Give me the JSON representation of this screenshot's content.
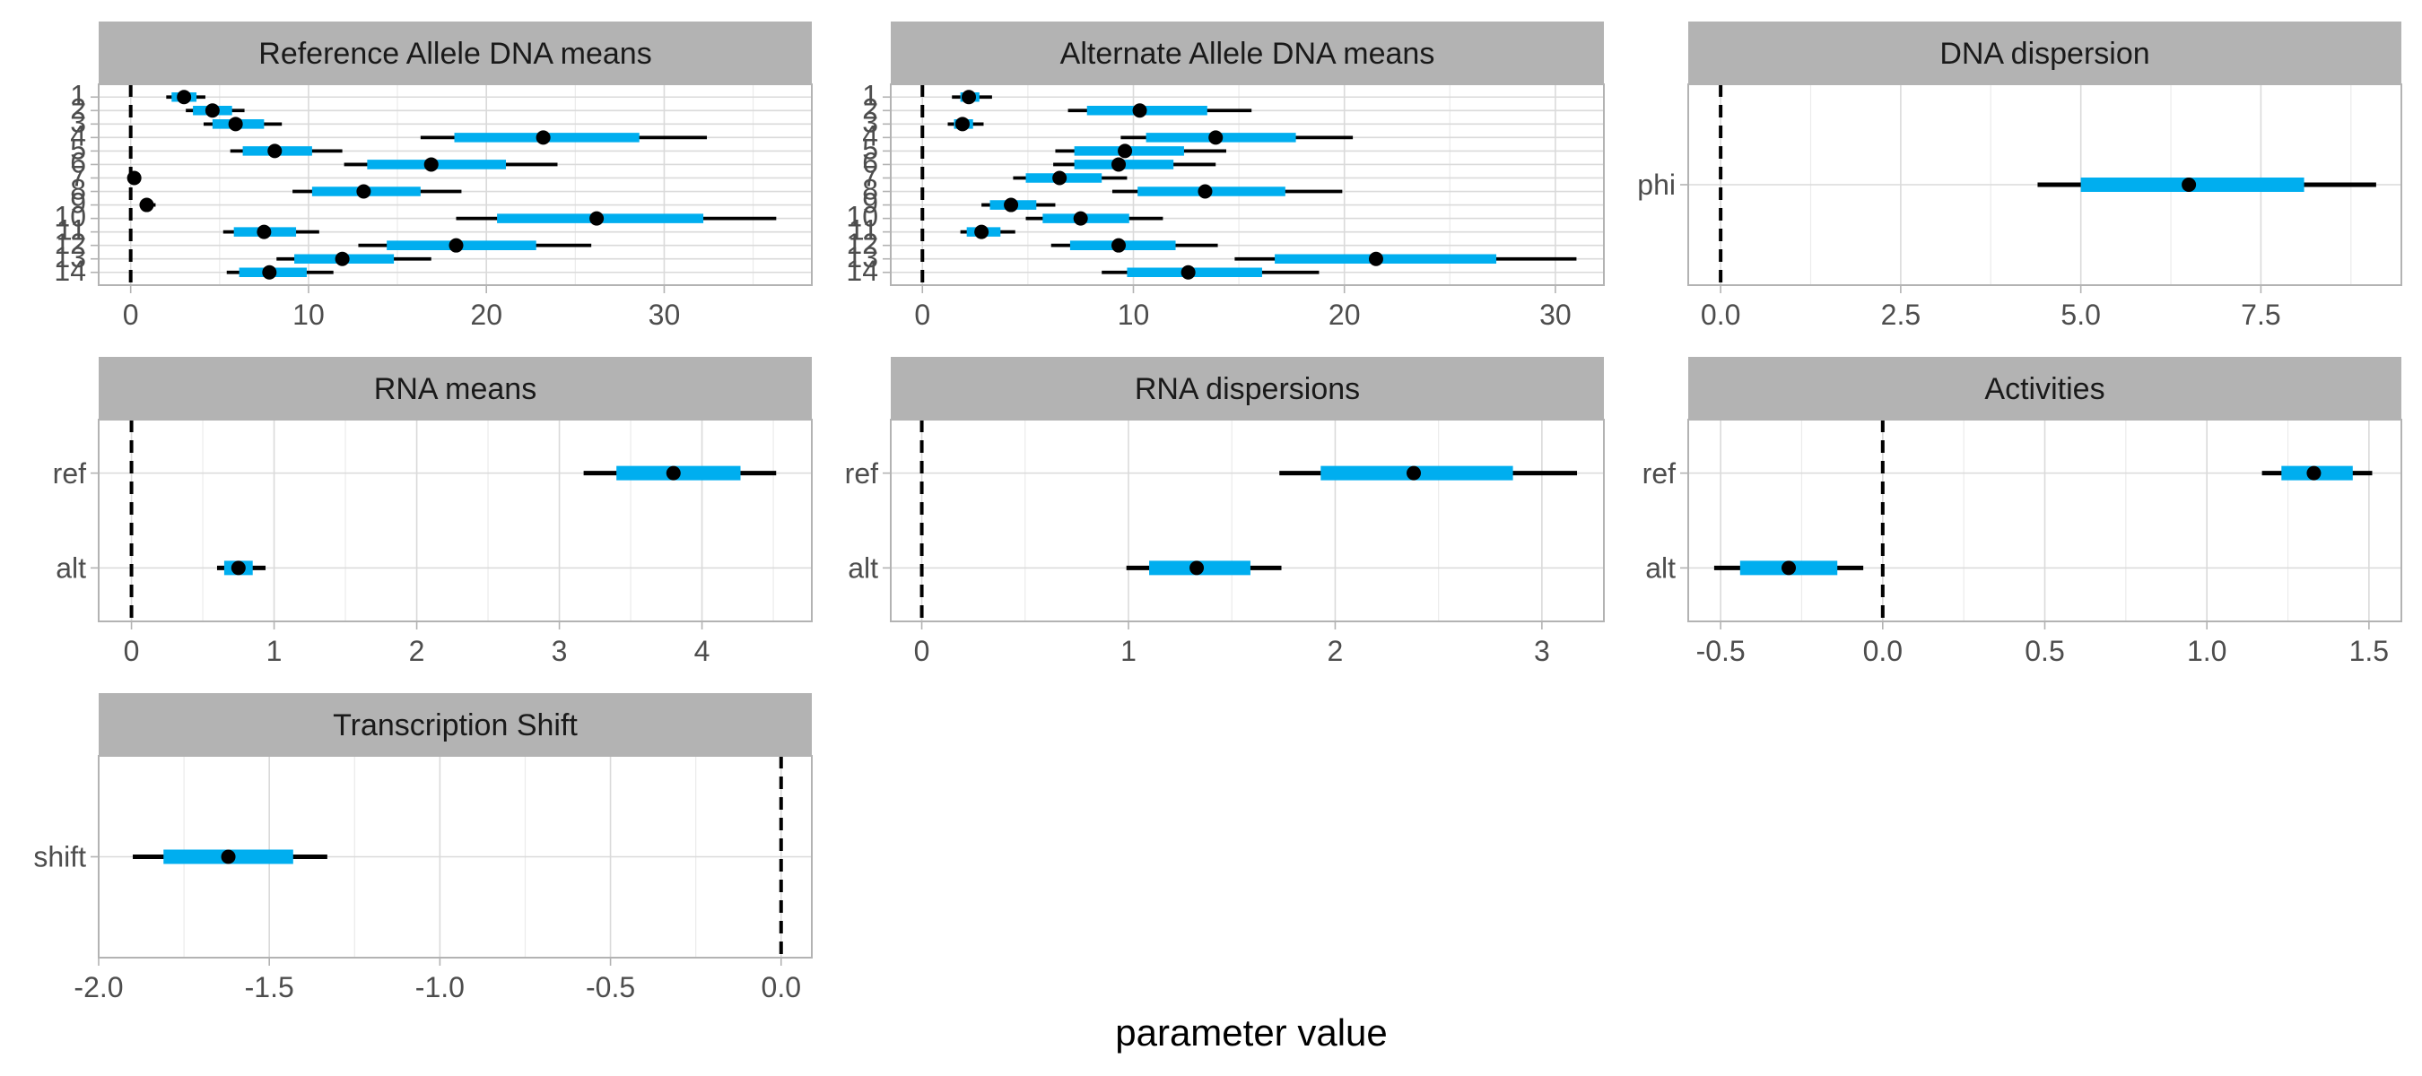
{
  "colors": {
    "strip_bg": "#B3B3B3",
    "panel_border": "#B3B3B3",
    "grid_major": "#DADADA",
    "grid_minor": "#EBEBEB",
    "interval_inner": "#00AEEF",
    "interval_outer": "#000000",
    "point": "#000000",
    "zero_line": "#000000",
    "tick_label": "#4D4D4D"
  },
  "x_axis_title": "parameter value",
  "chart_data": [
    {
      "type": "interval",
      "title": "Reference Allele DNA means",
      "xlim": [
        -1.8,
        38.3
      ],
      "xticks": [
        0,
        10,
        20,
        30
      ],
      "xtick_labels": [
        "0",
        "10",
        "20",
        "30"
      ],
      "grid_minor": true,
      "reference_line": 0,
      "categories": [
        "1",
        "2",
        "3",
        "4",
        "5",
        "6",
        "7",
        "8",
        "9",
        "10",
        "11",
        "12",
        "13",
        "14"
      ],
      "tick_labels": [
        "1",
        "2",
        "3",
        "4",
        "5",
        "6",
        "7",
        "8",
        "9",
        "10",
        "11",
        "12",
        "13",
        "14"
      ],
      "point": [
        3.0,
        4.6,
        5.9,
        23.2,
        8.1,
        16.9,
        0.2,
        13.1,
        0.9,
        26.2,
        7.5,
        18.3,
        11.9,
        7.8
      ],
      "inner": [
        [
          2.3,
          3.7
        ],
        [
          3.5,
          5.7
        ],
        [
          4.6,
          7.5
        ],
        [
          18.2,
          28.6
        ],
        [
          6.3,
          10.2
        ],
        [
          13.3,
          21.1
        ],
        [
          0.05,
          0.4
        ],
        [
          10.2,
          16.3
        ],
        [
          0.6,
          1.2
        ],
        [
          20.6,
          32.2
        ],
        [
          5.8,
          9.3
        ],
        [
          14.4,
          22.8
        ],
        [
          9.2,
          14.8
        ],
        [
          6.1,
          9.9
        ]
      ],
      "outer": [
        [
          2.0,
          4.2
        ],
        [
          3.1,
          6.4
        ],
        [
          4.1,
          8.5
        ],
        [
          16.3,
          32.4
        ],
        [
          5.6,
          11.9
        ],
        [
          12.0,
          24.0
        ],
        [
          0.0,
          0.5
        ],
        [
          9.1,
          18.6
        ],
        [
          0.5,
          1.4
        ],
        [
          18.3,
          36.3
        ],
        [
          5.2,
          10.6
        ],
        [
          12.8,
          25.9
        ],
        [
          8.2,
          16.9
        ],
        [
          5.4,
          11.4
        ]
      ]
    },
    {
      "type": "interval",
      "title": "Alternate Allele DNA means",
      "xlim": [
        -1.5,
        32.3
      ],
      "xticks": [
        0,
        10,
        20,
        30
      ],
      "xtick_labels": [
        "0",
        "10",
        "20",
        "30"
      ],
      "grid_minor": true,
      "reference_line": 0,
      "categories": [
        "1",
        "2",
        "3",
        "4",
        "5",
        "6",
        "7",
        "8",
        "9",
        "10",
        "11",
        "12",
        "13",
        "14"
      ],
      "tick_labels": [
        "1",
        "2",
        "3",
        "4",
        "5",
        "6",
        "7",
        "8",
        "9",
        "10",
        "11",
        "12",
        "13",
        "14"
      ],
      "point": [
        2.2,
        10.3,
        1.9,
        13.9,
        9.6,
        9.3,
        6.5,
        13.4,
        4.2,
        7.5,
        2.8,
        9.3,
        21.5,
        12.6
      ],
      "inner": [
        [
          1.8,
          2.7
        ],
        [
          7.8,
          13.5
        ],
        [
          1.5,
          2.4
        ],
        [
          10.6,
          17.7
        ],
        [
          7.2,
          12.4
        ],
        [
          7.2,
          11.9
        ],
        [
          4.9,
          8.5
        ],
        [
          10.2,
          17.2
        ],
        [
          3.2,
          5.4
        ],
        [
          5.7,
          9.8
        ],
        [
          2.1,
          3.7
        ],
        [
          7.0,
          12.0
        ],
        [
          16.7,
          27.2
        ],
        [
          9.7,
          16.1
        ]
      ],
      "outer": [
        [
          1.4,
          3.3
        ],
        [
          6.9,
          15.6
        ],
        [
          1.2,
          2.9
        ],
        [
          9.4,
          20.4
        ],
        [
          6.3,
          14.4
        ],
        [
          6.2,
          13.9
        ],
        [
          4.3,
          9.7
        ],
        [
          9.0,
          19.9
        ],
        [
          2.8,
          6.3
        ],
        [
          4.9,
          11.4
        ],
        [
          1.8,
          4.4
        ],
        [
          6.1,
          14.0
        ],
        [
          14.8,
          31.0
        ],
        [
          8.5,
          18.8
        ]
      ]
    },
    {
      "type": "interval",
      "title": "DNA dispersion",
      "xlim": [
        -0.45,
        9.45
      ],
      "xticks": [
        0,
        2.5,
        5,
        7.5
      ],
      "xtick_labels": [
        "0.0",
        "2.5",
        "5.0",
        "7.5"
      ],
      "grid_minor": true,
      "reference_line": 0,
      "categories": [
        "phi"
      ],
      "tick_labels": [
        "phi"
      ],
      "point": [
        6.5
      ],
      "inner": [
        [
          5.0,
          8.1
        ]
      ],
      "outer": [
        [
          4.4,
          9.1
        ]
      ]
    },
    {
      "type": "interval",
      "title": "RNA means",
      "xlim": [
        -0.23,
        4.77
      ],
      "xticks": [
        0,
        1,
        2,
        3,
        4
      ],
      "xtick_labels": [
        "0",
        "1",
        "2",
        "3",
        "4"
      ],
      "grid_minor": true,
      "reference_line": 0,
      "categories": [
        "ref",
        "alt"
      ],
      "tick_labels": [
        "ref",
        "alt"
      ],
      "point": [
        3.8,
        0.75
      ],
      "inner": [
        [
          3.4,
          4.27
        ],
        [
          0.65,
          0.85
        ]
      ],
      "outer": [
        [
          3.17,
          4.52
        ],
        [
          0.6,
          0.94
        ]
      ]
    },
    {
      "type": "interval",
      "title": "RNA dispersions",
      "xlim": [
        -0.15,
        3.3
      ],
      "xticks": [
        0,
        1,
        2,
        3
      ],
      "xtick_labels": [
        "0",
        "1",
        "2",
        "3"
      ],
      "grid_minor": true,
      "reference_line": 0,
      "categories": [
        "ref",
        "alt"
      ],
      "tick_labels": [
        "ref",
        "alt"
      ],
      "point": [
        2.38,
        1.33
      ],
      "inner": [
        [
          1.93,
          2.86
        ],
        [
          1.1,
          1.59
        ]
      ],
      "outer": [
        [
          1.73,
          3.17
        ],
        [
          0.99,
          1.74
        ]
      ]
    },
    {
      "type": "interval",
      "title": "Activities",
      "xlim": [
        -0.6,
        1.6
      ],
      "xticks": [
        -0.5,
        0,
        0.5,
        1,
        1.5
      ],
      "xtick_labels": [
        "-0.5",
        "0.0",
        "0.5",
        "1.0",
        "1.5"
      ],
      "grid_minor": true,
      "reference_line": 0,
      "categories": [
        "ref",
        "alt"
      ],
      "tick_labels": [
        "ref",
        "alt"
      ],
      "point": [
        1.33,
        -0.29
      ],
      "inner": [
        [
          1.23,
          1.45
        ],
        [
          -0.44,
          -0.14
        ]
      ],
      "outer": [
        [
          1.17,
          1.51
        ],
        [
          -0.52,
          -0.06
        ]
      ]
    },
    {
      "type": "interval",
      "title": "Transcription Shift",
      "xlim": [
        -2.0,
        0.09
      ],
      "xticks": [
        -2,
        -1.5,
        -1,
        -0.5,
        0
      ],
      "xtick_labels": [
        "-2.0",
        "-1.5",
        "-1.0",
        "-0.5",
        "0.0"
      ],
      "grid_minor": true,
      "reference_line": 0,
      "categories": [
        "shift"
      ],
      "tick_labels": [
        "shift"
      ],
      "point": [
        -1.62
      ],
      "inner": [
        [
          -1.81,
          -1.43
        ]
      ],
      "outer": [
        [
          -1.9,
          -1.33
        ]
      ]
    }
  ]
}
